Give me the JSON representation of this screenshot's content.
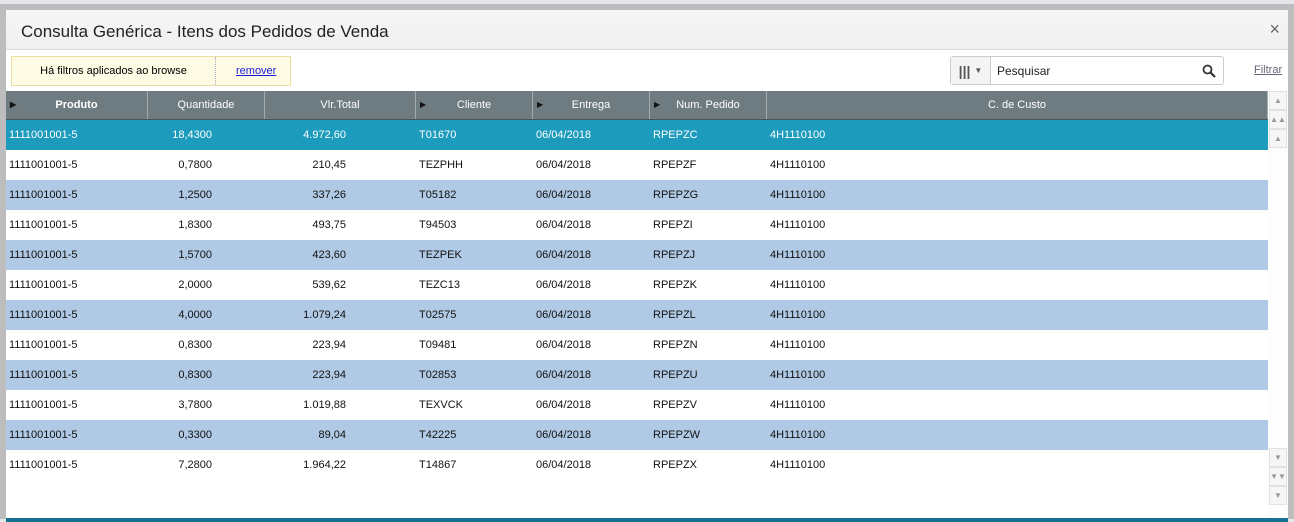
{
  "dialog": {
    "title": "Consulta Genérica - Itens dos Pedidos de Venda",
    "close": "×"
  },
  "toolbar": {
    "filter_msg": "Há filtros aplicados ao browse",
    "remove": "remover",
    "search_placeholder": "Pesquisar",
    "filter": "Filtrar"
  },
  "columns": [
    "Produto",
    "Quantidade",
    "Vlr.Total",
    "Cliente",
    "Entrega",
    "Num. Pedido",
    "C. de Custo"
  ],
  "rows": [
    [
      "1111001001-5",
      "18,4300",
      "4.972,60",
      "T01670",
      "06/04/2018",
      "RPEPZC",
      "4H1110100"
    ],
    [
      "1111001001-5",
      "0,7800",
      "210,45",
      "TEZPHH",
      "06/04/2018",
      "RPEPZF",
      "4H1110100"
    ],
    [
      "1111001001-5",
      "1,2500",
      "337,26",
      "T05182",
      "06/04/2018",
      "RPEPZG",
      "4H1110100"
    ],
    [
      "1111001001-5",
      "1,8300",
      "493,75",
      "T94503",
      "06/04/2018",
      "RPEPZI",
      "4H1110100"
    ],
    [
      "1111001001-5",
      "1,5700",
      "423,60",
      "TEZPEK",
      "06/04/2018",
      "RPEPZJ",
      "4H1110100"
    ],
    [
      "1111001001-5",
      "2,0000",
      "539,62",
      "TEZC13",
      "06/04/2018",
      "RPEPZK",
      "4H1110100"
    ],
    [
      "1111001001-5",
      "4,0000",
      "1.079,24",
      "T02575",
      "06/04/2018",
      "RPEPZL",
      "4H1110100"
    ],
    [
      "1111001001-5",
      "0,8300",
      "223,94",
      "T09481",
      "06/04/2018",
      "RPEPZN",
      "4H1110100"
    ],
    [
      "1111001001-5",
      "0,8300",
      "223,94",
      "T02853",
      "06/04/2018",
      "RPEPZU",
      "4H1110100"
    ],
    [
      "1111001001-5",
      "3,7800",
      "1.019,88",
      "TEXVCK",
      "06/04/2018",
      "RPEPZV",
      "4H1110100"
    ],
    [
      "1111001001-5",
      "0,3300",
      "89,04",
      "T42225",
      "06/04/2018",
      "RPEPZW",
      "4H1110100"
    ],
    [
      "1111001001-5",
      "7,2800",
      "1.964,22",
      "T14867",
      "06/04/2018",
      "RPEPZX",
      "4H1110100"
    ]
  ],
  "colors": {
    "header": "#6e7b80",
    "selected": "#1d9bbd",
    "stripe": "#b0c9e4"
  }
}
